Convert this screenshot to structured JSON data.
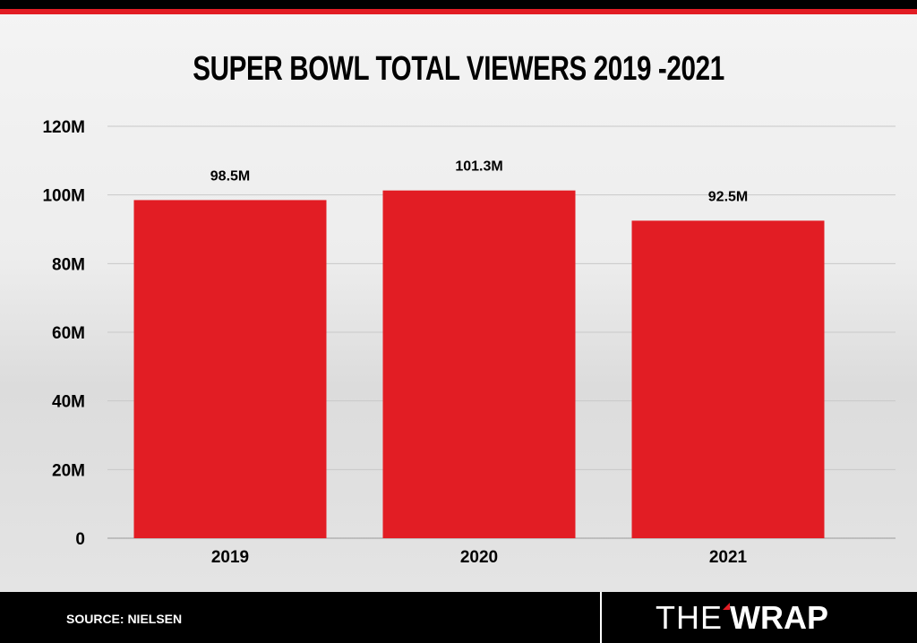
{
  "chart_data": {
    "type": "bar",
    "title": "SUPER BOWL TOTAL VIEWERS 2019 -2021",
    "categories": [
      "2019",
      "2020",
      "2021"
    ],
    "values": [
      98.5,
      101.3,
      92.5
    ],
    "data_labels": [
      "98.5M",
      "101.3M",
      "92.5M"
    ],
    "xlabel": "",
    "ylabel": "",
    "ylim": [
      0,
      120
    ],
    "yticks": [
      0,
      20,
      40,
      60,
      80,
      100,
      120
    ],
    "ytick_labels": [
      "0",
      "20M",
      "40M",
      "60M",
      "80M",
      "100M",
      "120M"
    ],
    "grid": true,
    "bar_color": "#e21d24"
  },
  "footer": {
    "source": "SOURCE: NIELSEN",
    "logo_the": "THE",
    "logo_wrap": "WRAP"
  }
}
